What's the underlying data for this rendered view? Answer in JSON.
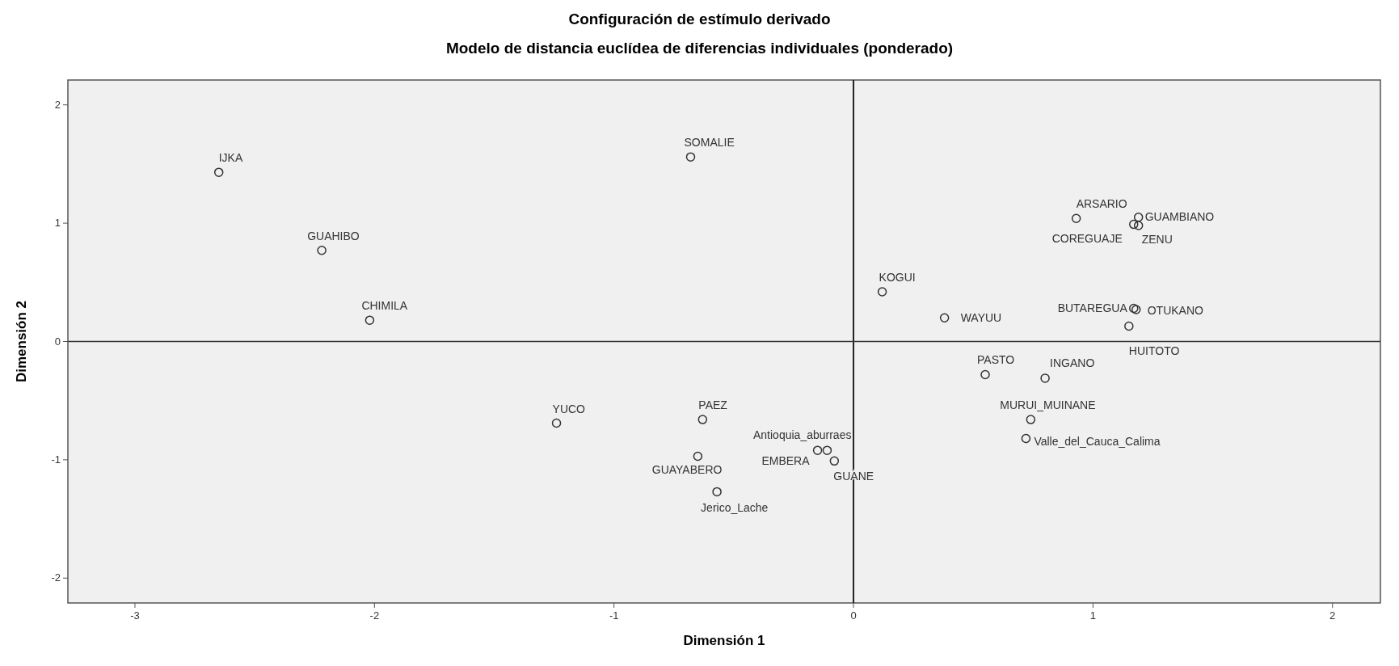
{
  "chart_data": {
    "type": "scatter",
    "title": "Configuración de estímulo derivado",
    "subtitle": "Modelo de distancia euclídea de diferencias individuales (ponderado)",
    "xlabel": "Dimensión 1",
    "ylabel": "Dimensión 2",
    "xlim": [
      -3.28,
      2.2
    ],
    "ylim": [
      -2.21,
      2.21
    ],
    "xticks": [
      -3,
      -2,
      -1,
      0,
      1,
      2
    ],
    "yticks": [
      -2,
      -1,
      0,
      1,
      2
    ],
    "grid": false,
    "marker": "circle",
    "series": [
      {
        "color": "#333333",
        "x": [
          -2.65,
          -0.68,
          -2.22,
          -2.02,
          0.93,
          1.19,
          1.17,
          1.19,
          0.12,
          0.38,
          1.17,
          1.18,
          1.15,
          0.55,
          0.8,
          0.74,
          0.72,
          -1.24,
          -0.63,
          -0.11,
          -0.15,
          -0.08,
          -0.65,
          -0.57
        ],
        "values": [
          1.43,
          1.56,
          0.77,
          0.18,
          1.04,
          1.05,
          0.99,
          0.98,
          0.42,
          0.2,
          0.28,
          0.27,
          0.13,
          -0.28,
          -0.31,
          -0.66,
          -0.82,
          -0.69,
          -0.66,
          -0.92,
          -0.92,
          -1.01,
          -0.97,
          -1.27
        ]
      }
    ],
    "ref_lines": [
      {
        "axis": "x",
        "value": 0
      },
      {
        "axis": "y",
        "value": 0
      }
    ],
    "annotations": [
      {
        "text": "IJKA",
        "x": -2.65,
        "y": 1.43
      },
      {
        "text": "SOMALIE",
        "x": -0.68,
        "y": 1.56
      },
      {
        "text": "GUAHIBO",
        "x": -2.22,
        "y": 0.77
      },
      {
        "text": "CHIMILA",
        "x": -2.02,
        "y": 0.18
      },
      {
        "text": "ARSARIO",
        "x": 0.93,
        "y": 1.04
      },
      {
        "text": "GUAMBIANO",
        "x": 1.19,
        "y": 1.05
      },
      {
        "text": "COREGUAJE",
        "x": 1.17,
        "y": 0.99
      },
      {
        "text": "ZENU",
        "x": 1.19,
        "y": 0.98
      },
      {
        "text": "KOGUI",
        "x": 0.12,
        "y": 0.42
      },
      {
        "text": "WAYUU",
        "x": 0.38,
        "y": 0.2
      },
      {
        "text": "BUTAREGUA",
        "x": 1.17,
        "y": 0.28
      },
      {
        "text": "OTUKANO",
        "x": 1.18,
        "y": 0.27
      },
      {
        "text": "HUITOTO",
        "x": 1.15,
        "y": 0.13
      },
      {
        "text": "PASTO",
        "x": 0.55,
        "y": -0.28
      },
      {
        "text": "INGANO",
        "x": 0.8,
        "y": -0.31
      },
      {
        "text": "MURUI_MUINANE",
        "x": 0.74,
        "y": -0.66
      },
      {
        "text": "Valle_del_Cauca_Calima",
        "x": 0.72,
        "y": -0.82
      },
      {
        "text": "YUCO",
        "x": -1.24,
        "y": -0.69
      },
      {
        "text": "PAEZ",
        "x": -0.63,
        "y": -0.66
      },
      {
        "text": "Antioquia_aburraes",
        "x": -0.11,
        "y": -0.92
      },
      {
        "text": "EMBERA",
        "x": -0.15,
        "y": -0.92
      },
      {
        "text": "GUANE",
        "x": -0.08,
        "y": -1.01
      },
      {
        "text": "GUAYABERO",
        "x": -0.65,
        "y": -0.97
      },
      {
        "text": "Jerico_Lache",
        "x": -0.57,
        "y": -1.27
      }
    ]
  }
}
